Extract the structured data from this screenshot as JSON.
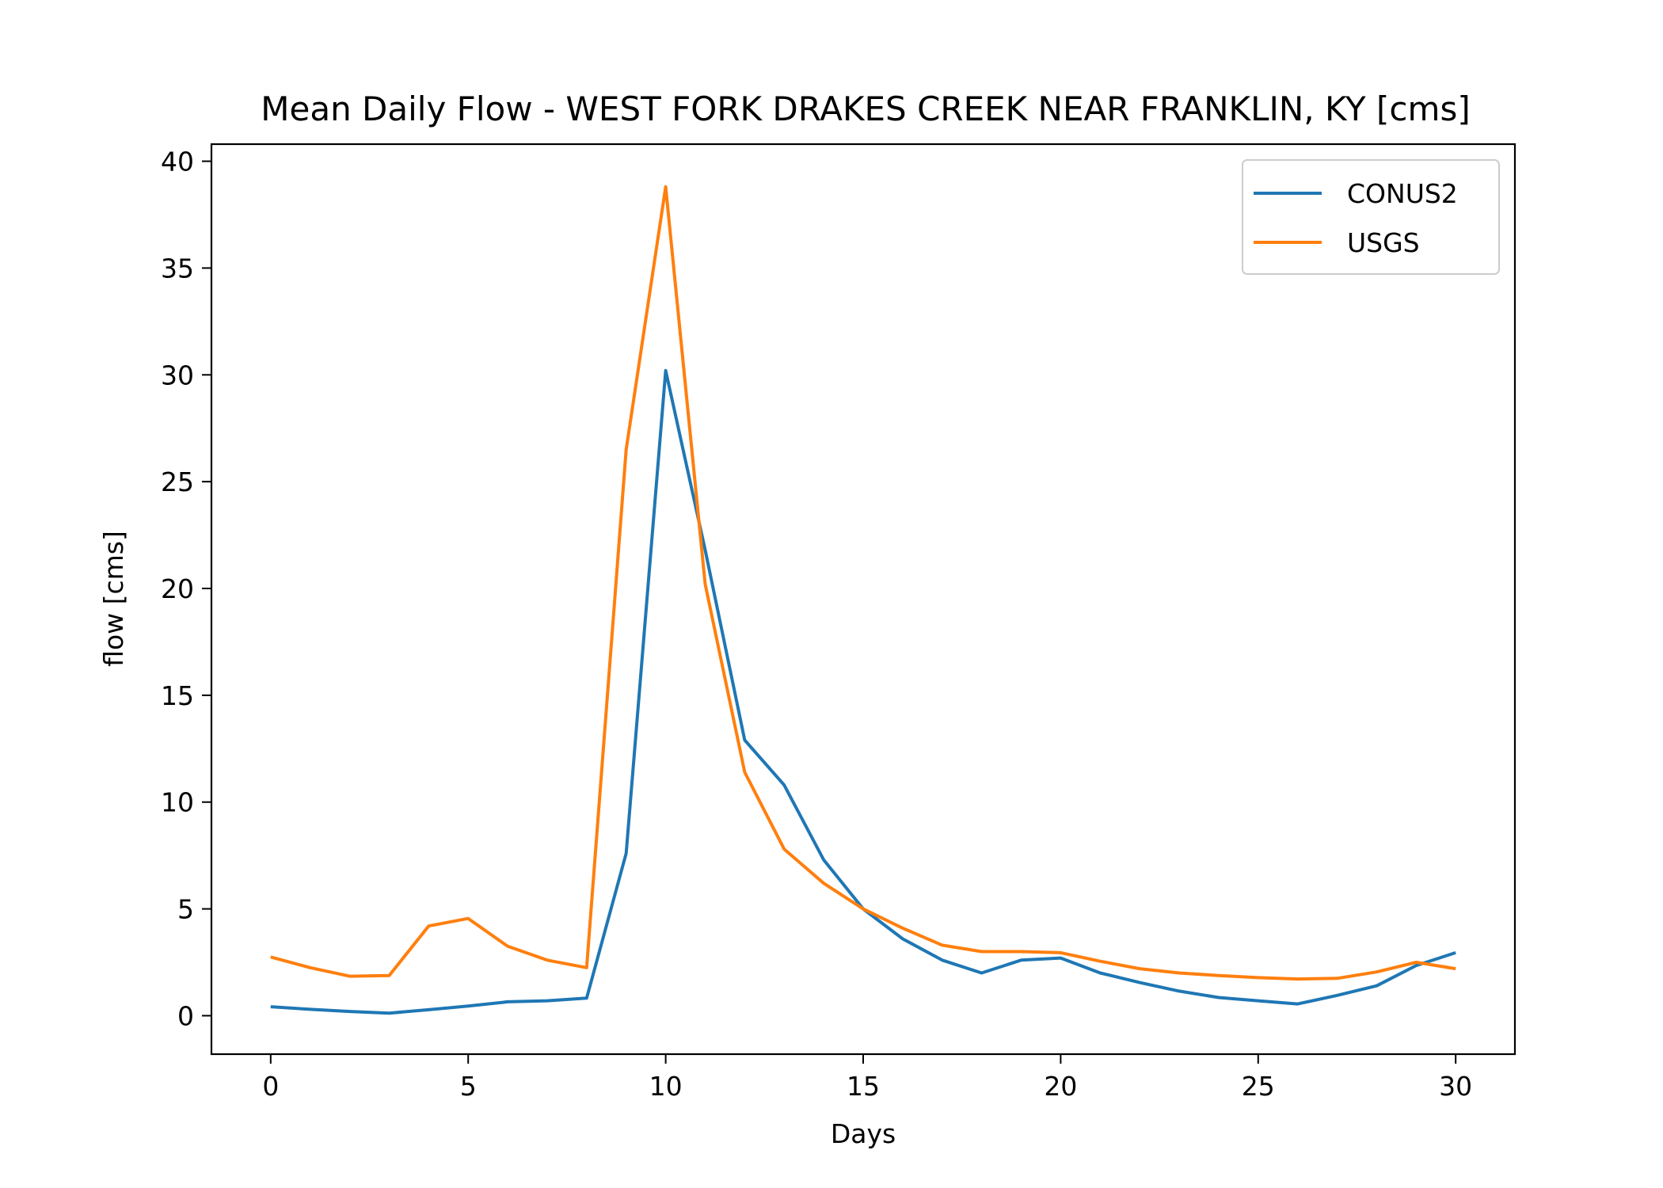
{
  "chart_data": {
    "type": "line",
    "title": "Mean Daily Flow - WEST FORK DRAKES CREEK NEAR FRANKLIN, KY [cms]",
    "xlabel": "Days",
    "ylabel": "flow [cms]",
    "xlim": [
      -1.5,
      31.5
    ],
    "ylim": [
      -1.8,
      40.8
    ],
    "xticks": [
      0,
      5,
      10,
      15,
      20,
      25,
      30
    ],
    "yticks": [
      0,
      5,
      10,
      15,
      20,
      25,
      30,
      35,
      40
    ],
    "grid": false,
    "legend_position": "upper-right",
    "x": [
      0,
      1,
      2,
      3,
      4,
      5,
      6,
      7,
      8,
      9,
      10,
      11,
      12,
      13,
      14,
      15,
      16,
      17,
      18,
      19,
      20,
      21,
      22,
      23,
      24,
      25,
      26,
      27,
      28,
      29,
      30
    ],
    "series": [
      {
        "name": "CONUS2",
        "color": "#1f77b4",
        "values": [
          0.42,
          0.3,
          0.2,
          0.12,
          0.28,
          0.45,
          0.65,
          0.7,
          0.82,
          7.6,
          30.2,
          21.8,
          12.9,
          10.8,
          7.3,
          5.0,
          3.6,
          2.6,
          2.0,
          2.6,
          2.7,
          2.0,
          1.55,
          1.15,
          0.85,
          0.7,
          0.55,
          0.95,
          1.4,
          2.35,
          2.95
        ]
      },
      {
        "name": "USGS",
        "color": "#ff7f0e",
        "values": [
          2.75,
          2.25,
          1.85,
          1.88,
          4.2,
          4.55,
          3.25,
          2.6,
          2.25,
          26.5,
          38.8,
          20.2,
          11.4,
          7.8,
          6.2,
          5.0,
          4.1,
          3.3,
          3.0,
          3.0,
          2.95,
          2.55,
          2.2,
          2.0,
          1.88,
          1.78,
          1.72,
          1.75,
          2.05,
          2.5,
          2.2
        ]
      }
    ]
  }
}
